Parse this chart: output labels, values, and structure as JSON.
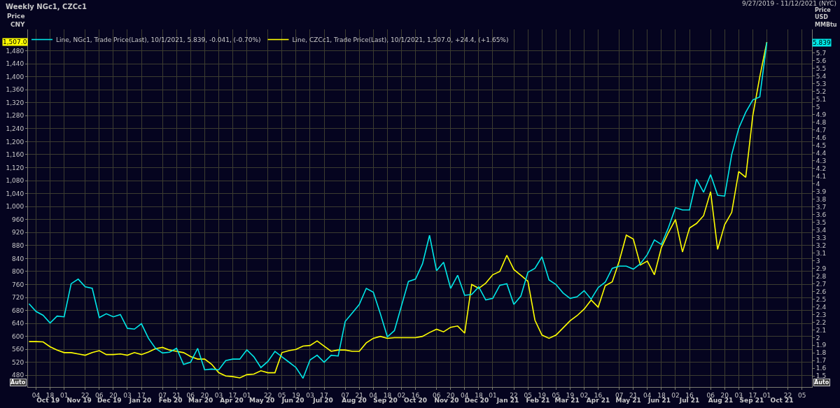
{
  "chart_data": {
    "type": "line",
    "title": "Weekly NGc1, CZCc1",
    "ylabel": "Price CNY",
    "y2label": "Price USD MMBtu",
    "annotations": [
      "9/27/2019 - 11/12/2021 (NYC)",
      "5.839",
      "1,507.0",
      "Auto",
      "Auto"
    ],
    "x": [
      "2019-09-27",
      "2019-10-04",
      "2019-10-11",
      "2019-10-18",
      "2019-10-25",
      "2019-11-01",
      "2019-11-08",
      "2019-11-15",
      "2019-11-22",
      "2019-11-29",
      "2019-12-06",
      "2019-12-13",
      "2019-12-20",
      "2019-12-27",
      "2020-01-03",
      "2020-01-10",
      "2020-01-17",
      "2020-01-24",
      "2020-01-31",
      "2020-02-07",
      "2020-02-14",
      "2020-02-21",
      "2020-02-28",
      "2020-03-06",
      "2020-03-13",
      "2020-03-20",
      "2020-03-27",
      "2020-04-03",
      "2020-04-10",
      "2020-04-17",
      "2020-04-24",
      "2020-05-01",
      "2020-05-08",
      "2020-05-15",
      "2020-05-22",
      "2020-05-29",
      "2020-06-05",
      "2020-06-12",
      "2020-06-19",
      "2020-06-26",
      "2020-07-03",
      "2020-07-10",
      "2020-07-17",
      "2020-07-24",
      "2020-07-31",
      "2020-08-07",
      "2020-08-14",
      "2020-08-21",
      "2020-08-28",
      "2020-09-04",
      "2020-09-11",
      "2020-09-18",
      "2020-09-25",
      "2020-10-02",
      "2020-10-09",
      "2020-10-16",
      "2020-10-23",
      "2020-10-30",
      "2020-11-06",
      "2020-11-13",
      "2020-11-20",
      "2020-11-27",
      "2020-12-04",
      "2020-12-11",
      "2020-12-18",
      "2020-12-25",
      "2021-01-01",
      "2021-01-08",
      "2021-01-15",
      "2021-01-22",
      "2021-01-29",
      "2021-02-05",
      "2021-02-12",
      "2021-02-19",
      "2021-02-26",
      "2021-03-05",
      "2021-03-12",
      "2021-03-19",
      "2021-03-26",
      "2021-04-02",
      "2021-04-09",
      "2021-04-16",
      "2021-04-23",
      "2021-04-30",
      "2021-05-07",
      "2021-05-14",
      "2021-05-21",
      "2021-05-28",
      "2021-06-04",
      "2021-06-11",
      "2021-06-18",
      "2021-06-25",
      "2021-07-02",
      "2021-07-09",
      "2021-07-16",
      "2021-07-23",
      "2021-07-30",
      "2021-08-06",
      "2021-08-13",
      "2021-08-20",
      "2021-08-27",
      "2021-09-03",
      "2021-09-10",
      "2021-09-17",
      "2021-09-24",
      "2021-10-01"
    ],
    "series": [
      {
        "name": "Line, NGc1, Trade Price(Last), 10/1/2021, 5.839, -0.041, (-0.70%)",
        "color": "#00e8e8",
        "axis": "y2",
        "values": [
          2.44,
          2.34,
          2.29,
          2.19,
          2.28,
          2.27,
          2.7,
          2.76,
          2.66,
          2.64,
          2.26,
          2.31,
          2.27,
          2.3,
          2.12,
          2.11,
          2.18,
          1.99,
          1.86,
          1.8,
          1.81,
          1.86,
          1.65,
          1.68,
          1.86,
          1.58,
          1.59,
          1.58,
          1.7,
          1.72,
          1.72,
          1.84,
          1.75,
          1.61,
          1.69,
          1.82,
          1.75,
          1.68,
          1.61,
          1.47,
          1.71,
          1.77,
          1.68,
          1.77,
          1.76,
          2.21,
          2.32,
          2.43,
          2.64,
          2.59,
          2.31,
          2.01,
          2.09,
          2.41,
          2.73,
          2.76,
          2.96,
          3.33,
          2.87,
          2.98,
          2.64,
          2.81,
          2.55,
          2.56,
          2.66,
          2.49,
          2.51,
          2.68,
          2.7,
          2.43,
          2.54,
          2.85,
          2.9,
          3.05,
          2.75,
          2.69,
          2.58,
          2.51,
          2.53,
          2.61,
          2.5,
          2.65,
          2.72,
          2.9,
          2.93,
          2.93,
          2.89,
          2.96,
          3.08,
          3.27,
          3.21,
          3.43,
          3.69,
          3.66,
          3.66,
          4.06,
          3.89,
          4.12,
          3.85,
          3.84,
          4.38,
          4.72,
          4.93,
          5.09,
          5.13,
          5.839
        ]
      },
      {
        "name": "Line, CZCc1, Trade Price(Last), 10/1/2021, 1,507.0, +24.4, (+1.65%)",
        "color": "#ffff00",
        "values": [
          584,
          584,
          583,
          568,
          558,
          550,
          550,
          546,
          542,
          550,
          556,
          544,
          544,
          546,
          542,
          550,
          544,
          552,
          562,
          566,
          558,
          554,
          550,
          538,
          530,
          530,
          514,
          488,
          478,
          476,
          472,
          482,
          484,
          494,
          488,
          488,
          550,
          556,
          560,
          570,
          572,
          586,
          570,
          554,
          558,
          558,
          554,
          554,
          580,
          594,
          600,
          594,
          596,
          596,
          596,
          596,
          600,
          612,
          622,
          614,
          628,
          632,
          610,
          760,
          748,
          764,
          790,
          800,
          850,
          806,
          788,
          770,
          650,
          604,
          594,
          604,
          626,
          648,
          664,
          684,
          712,
          690,
          756,
          768,
          832,
          912,
          900,
          820,
          832,
          790,
          874,
          920,
          960,
          860,
          934,
          948,
          972,
          1046,
          868,
          944,
          982,
          1108,
          1090,
          1280,
          1400,
          1507
        ]
      }
    ],
    "xlim": [
      "2019-09-26",
      "2021-11-15"
    ],
    "xticks": [
      {
        "value": "2019-10-04",
        "label": "04"
      },
      {
        "value": "2019-10-18",
        "label": "18"
      },
      {
        "value": "2019-11-01",
        "label": "01"
      },
      {
        "value": "2019-11-22",
        "label": "22"
      },
      {
        "value": "2019-12-06",
        "label": "06"
      },
      {
        "value": "2019-12-20",
        "label": "20"
      },
      {
        "value": "2020-01-03",
        "label": "03"
      },
      {
        "value": "2020-01-17",
        "label": "17"
      },
      {
        "value": "2020-02-07",
        "label": "07"
      },
      {
        "value": "2020-02-21",
        "label": "21"
      },
      {
        "value": "2020-03-06",
        "label": "06"
      },
      {
        "value": "2020-03-20",
        "label": "20"
      },
      {
        "value": "2020-04-03",
        "label": "03"
      },
      {
        "value": "2020-04-17",
        "label": "17"
      },
      {
        "value": "2020-05-01",
        "label": "01"
      },
      {
        "value": "2020-05-22",
        "label": "22"
      },
      {
        "value": "2020-06-05",
        "label": "05"
      },
      {
        "value": "2020-06-19",
        "label": "19"
      },
      {
        "value": "2020-07-03",
        "label": "03"
      },
      {
        "value": "2020-07-17",
        "label": "17"
      },
      {
        "value": "2020-08-07",
        "label": "07"
      },
      {
        "value": "2020-08-21",
        "label": "21"
      },
      {
        "value": "2020-09-04",
        "label": "04"
      },
      {
        "value": "2020-09-18",
        "label": "18"
      },
      {
        "value": "2020-10-02",
        "label": "02"
      },
      {
        "value": "2020-10-16",
        "label": "16"
      },
      {
        "value": "2020-11-06",
        "label": "06"
      },
      {
        "value": "2020-11-20",
        "label": "20"
      },
      {
        "value": "2020-12-04",
        "label": "04"
      },
      {
        "value": "2020-12-18",
        "label": "18"
      },
      {
        "value": "2021-01-01",
        "label": "01"
      },
      {
        "value": "2021-01-22",
        "label": "22"
      },
      {
        "value": "2021-02-05",
        "label": "05"
      },
      {
        "value": "2021-02-19",
        "label": "19"
      },
      {
        "value": "2021-03-05",
        "label": "05"
      },
      {
        "value": "2021-03-19",
        "label": "19"
      },
      {
        "value": "2021-04-02",
        "label": "02"
      },
      {
        "value": "2021-04-16",
        "label": "16"
      },
      {
        "value": "2021-05-07",
        "label": "07"
      },
      {
        "value": "2021-05-21",
        "label": "21"
      },
      {
        "value": "2021-06-04",
        "label": "04"
      },
      {
        "value": "2021-06-18",
        "label": "18"
      },
      {
        "value": "2021-07-02",
        "label": "02"
      },
      {
        "value": "2021-07-16",
        "label": "16"
      },
      {
        "value": "2021-08-06",
        "label": "06"
      },
      {
        "value": "2021-08-20",
        "label": "20"
      },
      {
        "value": "2021-09-03",
        "label": "03"
      },
      {
        "value": "2021-09-17",
        "label": "17"
      },
      {
        "value": "2021-10-01",
        "label": "01"
      },
      {
        "value": "2021-10-22",
        "label": "22"
      },
      {
        "value": "2021-11-05",
        "label": "05"
      }
    ],
    "x2lim": [
      "2019-09-26",
      "2021-11-15"
    ],
    "x2ticks": [
      {
        "value": "2019-10-16",
        "label": "Oct 19"
      },
      {
        "value": "2019-11-16",
        "label": "Nov 19"
      },
      {
        "value": "2019-12-16",
        "label": "Dec 19"
      },
      {
        "value": "2020-01-16",
        "label": "Jan 20"
      },
      {
        "value": "2020-02-15",
        "label": "Feb 20"
      },
      {
        "value": "2020-03-16",
        "label": "Mar 20"
      },
      {
        "value": "2020-04-16",
        "label": "Apr 20"
      },
      {
        "value": "2020-05-16",
        "label": "May 20"
      },
      {
        "value": "2020-06-16",
        "label": "Jun 20"
      },
      {
        "value": "2020-07-16",
        "label": "Jul 20"
      },
      {
        "value": "2020-08-16",
        "label": "Aug 20"
      },
      {
        "value": "2020-09-16",
        "label": "Sep 20"
      },
      {
        "value": "2020-10-16",
        "label": "Oct 20"
      },
      {
        "value": "2020-11-16",
        "label": "Nov 20"
      },
      {
        "value": "2020-12-16",
        "label": "Dec 20"
      },
      {
        "value": "2021-01-16",
        "label": "Jan 21"
      },
      {
        "value": "2021-02-15",
        "label": "Feb 21"
      },
      {
        "value": "2021-03-16",
        "label": "Mar 21"
      },
      {
        "value": "2021-04-16",
        "label": "Apr 21"
      },
      {
        "value": "2021-05-16",
        "label": "May 21"
      },
      {
        "value": "2021-06-16",
        "label": "Jun 21"
      },
      {
        "value": "2021-07-16",
        "label": "Jul 21"
      },
      {
        "value": "2021-08-16",
        "label": "Aug 21"
      },
      {
        "value": "2021-09-16",
        "label": "Sep 21"
      },
      {
        "value": "2021-10-16",
        "label": "Oct 21"
      }
    ],
    "ylim": [
      444,
      1546
    ],
    "yticks": [
      480,
      520,
      560,
      600,
      640,
      680,
      720,
      760,
      800,
      840,
      880,
      920,
      960,
      {
        "value": 1000,
        "label": "1,000"
      },
      {
        "value": 1040,
        "label": "1,040"
      },
      {
        "value": 1080,
        "label": "1,080"
      },
      {
        "value": 1120,
        "label": "1,120"
      },
      {
        "value": 1160,
        "label": "1,160"
      },
      {
        "value": 1200,
        "label": "1,200"
      },
      {
        "value": 1240,
        "label": "1,240"
      },
      {
        "value": 1280,
        "label": "1,280"
      },
      {
        "value": 1320,
        "label": "1,320"
      },
      {
        "value": 1360,
        "label": "1,360"
      },
      {
        "value": 1400,
        "label": "1,400"
      },
      {
        "value": 1440,
        "label": "1,440"
      },
      {
        "value": 1480,
        "label": "1,480"
      }
    ],
    "y2lim": [
      1.357,
      6.008
    ],
    "y2ticks": [
      1.5,
      1.6,
      1.7,
      1.8,
      1.9,
      2,
      2.1,
      2.2,
      2.3,
      2.4,
      2.5,
      2.6,
      2.7,
      2.8,
      2.9,
      3,
      3.1,
      3.2,
      3.3,
      3.4,
      3.5,
      3.6,
      3.7,
      3.8,
      3.9,
      4,
      4.1,
      4.2,
      4.3,
      4.4,
      4.5,
      4.6,
      4.7,
      4.8,
      4.9,
      5,
      5.1,
      5.2,
      5.3,
      5.4,
      5.5,
      5.6,
      5.7
    ],
    "grid": true,
    "legend": "top left",
    "marker": "none",
    "line_style": "solid"
  }
}
